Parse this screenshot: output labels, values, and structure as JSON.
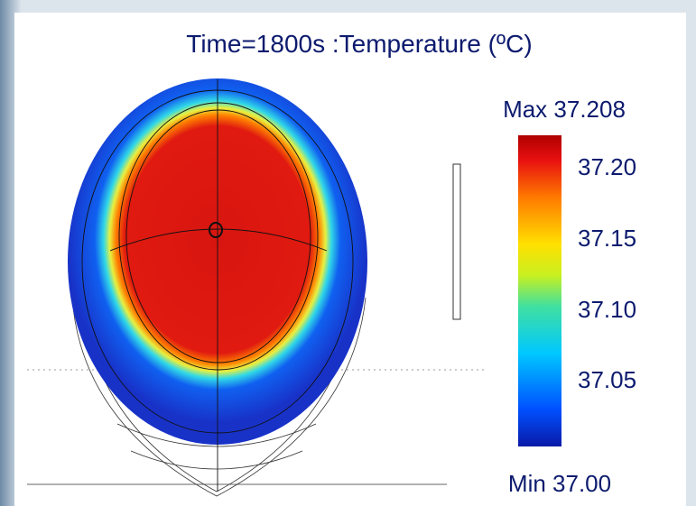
{
  "title": "Time=1800s :Temperature (ºC)",
  "max_label": "Max 37.208",
  "min_label": "Min 37.00",
  "colorbar_labels": [
    "37.20",
    "37.15",
    "37.10",
    "37.05"
  ]
}
